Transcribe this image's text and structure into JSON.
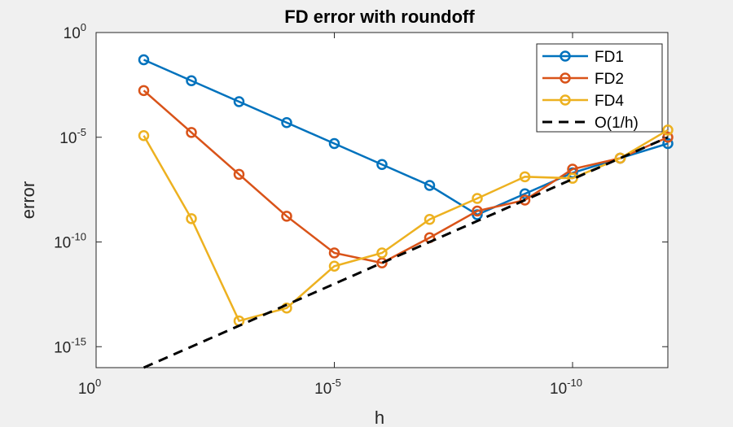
{
  "chart_data": {
    "type": "line",
    "title": "FD error with roundoff",
    "xlabel": "h",
    "ylabel": "error",
    "x_scale": "log",
    "y_scale": "log",
    "x_direction": "reversed",
    "xlim": [
      1,
      1e-12
    ],
    "ylim": [
      1e-16,
      1
    ],
    "x_ticks": [
      {
        "value": 1,
        "base": "10",
        "exp": "0"
      },
      {
        "value": 1e-05,
        "base": "10",
        "exp": "-5"
      },
      {
        "value": 1e-10,
        "base": "10",
        "exp": "-10"
      }
    ],
    "y_ticks": [
      {
        "value": 1,
        "base": "10",
        "exp": "0"
      },
      {
        "value": 1e-05,
        "base": "10",
        "exp": "-5"
      },
      {
        "value": 1e-10,
        "base": "10",
        "exp": "-10"
      },
      {
        "value": 1e-15,
        "base": "10",
        "exp": "-15"
      }
    ],
    "grid": false,
    "legend_position": "top-right",
    "x": [
      0.1,
      0.01,
      0.001,
      0.0001,
      1e-05,
      1e-06,
      1e-07,
      1e-08,
      1e-09,
      1e-10,
      1e-11,
      1e-12
    ],
    "series": [
      {
        "name": "FD1",
        "color": "#0072bd",
        "marker": "circle",
        "line": "solid",
        "values": [
          0.05,
          0.005,
          0.0005,
          5e-05,
          5e-06,
          5e-07,
          5e-08,
          2e-09,
          2e-08,
          2e-07,
          1e-06,
          5e-06
        ]
      },
      {
        "name": "FD2",
        "color": "#d95319",
        "marker": "circle",
        "line": "solid",
        "values": [
          0.0017,
          1.7e-05,
          1.7e-07,
          1.7e-09,
          3e-11,
          1e-11,
          1.6e-10,
          3e-09,
          1e-08,
          3e-07,
          1e-06,
          1e-05
        ]
      },
      {
        "name": "FD4",
        "color": "#edb120",
        "marker": "circle",
        "line": "solid",
        "values": [
          1.2e-05,
          1.3e-09,
          1.7e-14,
          7e-14,
          7e-12,
          3e-11,
          1.2e-09,
          1.2e-08,
          1.3e-07,
          1.1e-07,
          1e-06,
          2.2e-05
        ]
      },
      {
        "name": "O(1/h)",
        "color": "#000000",
        "marker": "none",
        "line": "dashed",
        "x": [
          0.1,
          1e-12
        ],
        "values": [
          1e-16,
          1e-05
        ]
      }
    ]
  }
}
